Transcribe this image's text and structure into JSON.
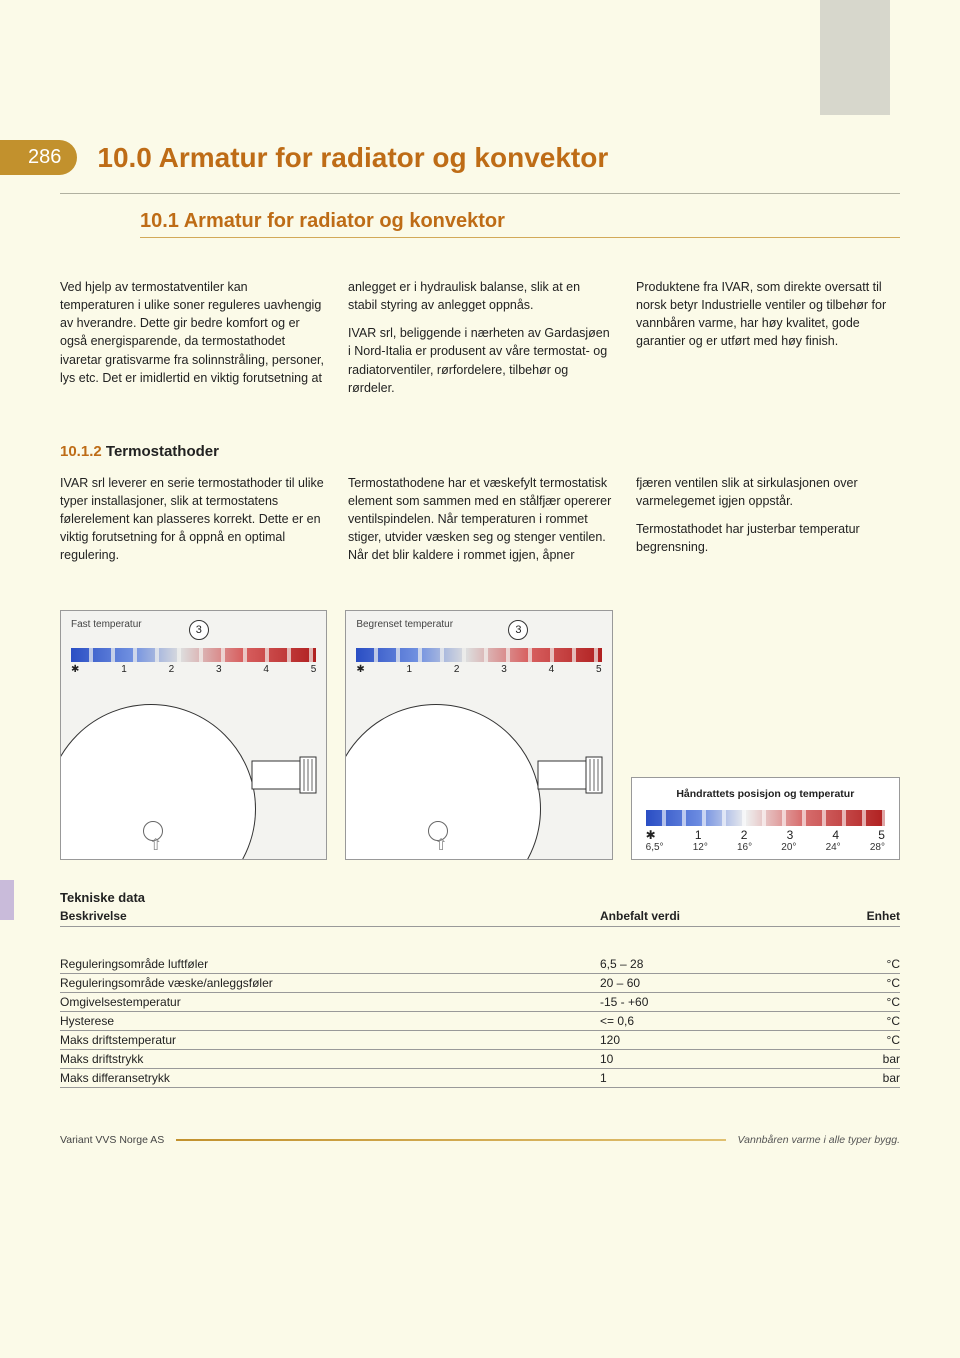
{
  "page_number": "286",
  "heading_main": "10.0 Armatur for radiator og konvektor",
  "heading_sub": "10.1  Armatur for radiator og konvektor",
  "intro_columns": [
    "Ved hjelp av termostatventiler kan temperaturen i ulike soner reguleres uavhengig av hverandre. Dette gir bedre komfort og er også energisparende, da termostathodet ivaretar gratisvarme fra solinnstråling, personer, lys etc. Det er imidlertid en viktig forutsetning at",
    "anlegget er i hydraulisk balanse, slik at en stabil styring av anlegget oppnås.\n\nIVAR srl, beliggende i nærheten av Gardasjøen i Nord-Italia er produsent av våre termostat- og radiatorventiler, rørfordelere, tilbehør og rørdeler.",
    "Produktene fra IVAR, som direkte oversatt til norsk betyr Industrielle ventiler og tilbehør for vannbåren varme, har høy kvalitet, gode garantier og er utført med høy finish."
  ],
  "section2": {
    "num": "10.1.2",
    "title": "Termostathoder",
    "cols": [
      "IVAR srl leverer en serie termostathoder til ulike typer installasjoner, slik at termostatens følerelement kan plasseres korrekt. Dette er en viktig forutsetning for å oppnå en optimal regulering.",
      "Termostathodene har et væskefylt termostatisk element som sammen med en stålfjær opererer ventilspindelen. Når temperaturen i rommet stiger, utvider væsken seg og stenger ventilen. Når det blir kaldere i rommet igjen, åpner",
      "fjæren ventilen slik at sirkulasjonen over varmelegemet igjen oppstår.\n\nTermostathodet har justerbar temperatur begrensning."
    ]
  },
  "diagrams": {
    "left_label": "Fast temperatur",
    "right_label": "Begrenset temperatur",
    "marker": "3",
    "scale_positions": [
      "✱",
      "1",
      "2",
      "3",
      "4",
      "5"
    ]
  },
  "legend": {
    "title": "Håndrattets posisjon og temperatur",
    "positions": [
      "✱",
      "1",
      "2",
      "3",
      "4",
      "5"
    ],
    "degrees": [
      "6,5°",
      "12°",
      "16°",
      "20°",
      "24°",
      "28°"
    ]
  },
  "tech": {
    "title": "Tekniske data",
    "head": {
      "desc": "Beskrivelse",
      "val": "Anbefalt verdi",
      "unit": "Enhet"
    },
    "rows": [
      {
        "desc": "Reguleringsområde luftføler",
        "val": "6,5 – 28",
        "unit": "°C"
      },
      {
        "desc": "Reguleringsområde væske/anleggsføler",
        "val": "20 – 60",
        "unit": "°C"
      },
      {
        "desc": "Omgivelsestemperatur",
        "val": "-15 - +60",
        "unit": "°C"
      },
      {
        "desc": "Hysterese",
        "val": "<= 0,6",
        "unit": "°C"
      },
      {
        "desc": "Maks driftstemperatur",
        "val": "120",
        "unit": "°C"
      },
      {
        "desc": "Maks driftstrykk",
        "val": "10",
        "unit": "bar"
      },
      {
        "desc": "Maks differansetrykk",
        "val": "1",
        "unit": "bar"
      }
    ]
  },
  "footer_left": "Variant VVS Norge AS",
  "footer_right": "Vannbåren varme i alle typer bygg.",
  "colors": {
    "accent": "#be6c16",
    "bubble": "#c2912d",
    "bg": "#fbfae8",
    "side_tab": "#c9bbda",
    "top_sidebar": "#d7d7cc"
  }
}
